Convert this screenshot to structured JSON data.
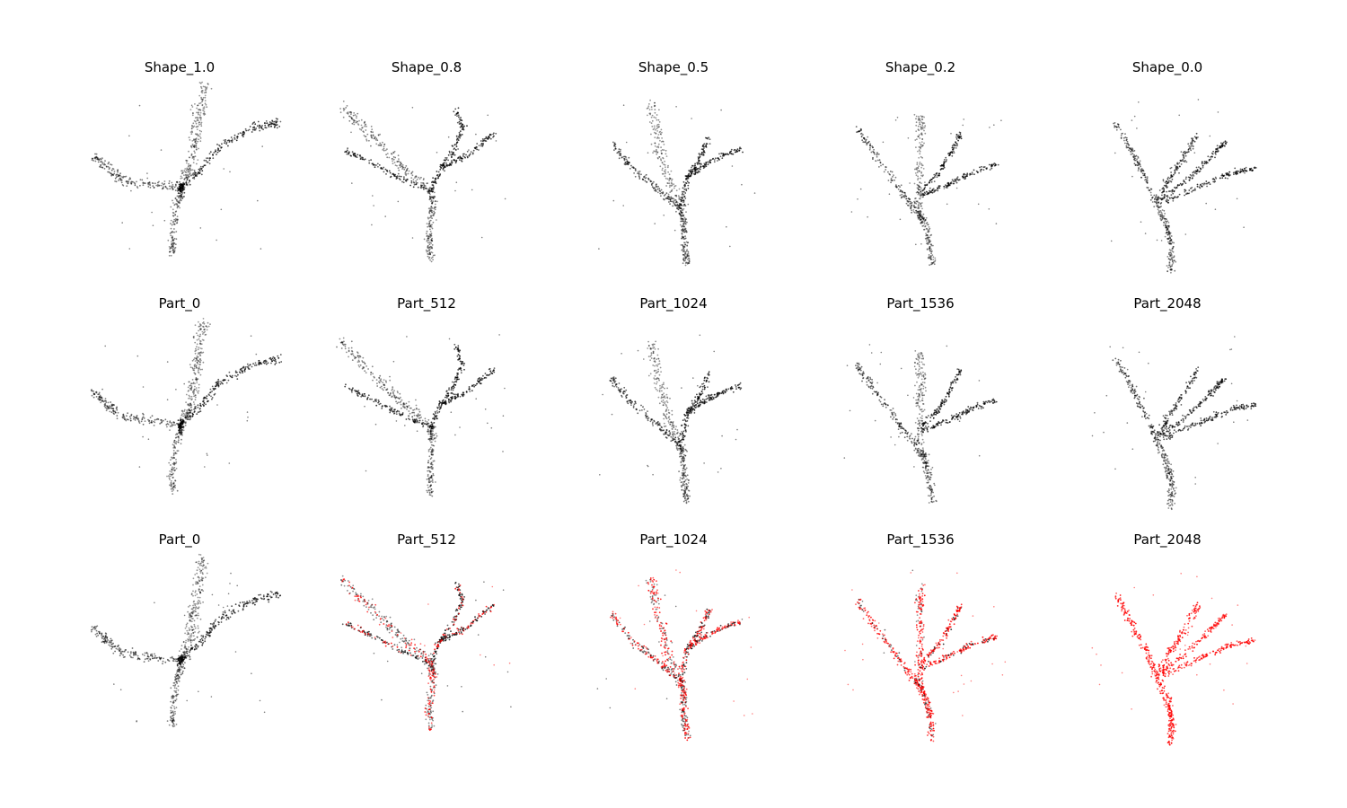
{
  "figure": {
    "rows": [
      {
        "titles": [
          "Shape_1.0",
          "Shape_0.8",
          "Shape_0.5",
          "Shape_0.2",
          "Shape_0.0"
        ]
      },
      {
        "titles": [
          "Part_0",
          "Part_512",
          "Part_1024",
          "Part_1536",
          "Part_2048"
        ]
      },
      {
        "titles": [
          "Part_0",
          "Part_512",
          "Part_1024",
          "Part_1536",
          "Part_2048"
        ]
      }
    ]
  },
  "colors": {
    "point_default": "#000000",
    "point_highlight": "#ff0000",
    "background": "#ffffff"
  }
}
